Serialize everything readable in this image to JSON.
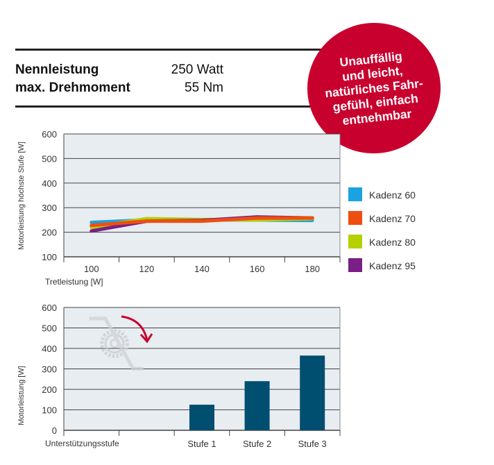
{
  "specs": [
    {
      "label": "Nennleistung",
      "value": "250 Watt"
    },
    {
      "label": "max. Drehmoment",
      "value": "55 Nm"
    }
  ],
  "badge": {
    "text": "Unauffällig\nund leicht,\nnatürliches Fahr-\ngefühl, einfach\nentnehmbar",
    "color": "#c8002e"
  },
  "chart_data": [
    {
      "type": "line",
      "title": "",
      "xlabel": "Tretleistung [W]",
      "ylabel": "Motorleistung höchste Stufe [W]",
      "x": [
        100,
        120,
        140,
        160,
        180
      ],
      "ylim": [
        100,
        600
      ],
      "yticks": [
        100,
        200,
        300,
        400,
        500,
        600
      ],
      "grid": true,
      "legend": "right",
      "series": [
        {
          "name": "Kadenz 60",
          "color": "#1aa3e0",
          "values": [
            240,
            250,
            250,
            250,
            248
          ]
        },
        {
          "name": "Kadenz 80",
          "color": "#b5cf00",
          "values": [
            220,
            255,
            252,
            250,
            255
          ]
        },
        {
          "name": "Kadenz 95",
          "color": "#7a1f86",
          "values": [
            205,
            245,
            248,
            262,
            258
          ]
        },
        {
          "name": "Kadenz 70",
          "color": "#ee4f10",
          "values": [
            228,
            245,
            245,
            258,
            258
          ]
        }
      ],
      "legend_order": [
        "Kadenz 60",
        "Kadenz 70",
        "Kadenz 80",
        "Kadenz 95"
      ]
    },
    {
      "type": "bar",
      "title": "",
      "xlabel": "Unterstützungsstufe",
      "ylabel": "Motorleistung [W]",
      "categories": [
        "Stufe 1",
        "Stufe 2",
        "Stufe 3"
      ],
      "values": [
        125,
        240,
        365
      ],
      "ylim": [
        0,
        600
      ],
      "yticks": [
        0,
        100,
        200,
        300,
        400,
        500,
        600
      ],
      "grid": true,
      "bar_color": "#004e70"
    }
  ]
}
